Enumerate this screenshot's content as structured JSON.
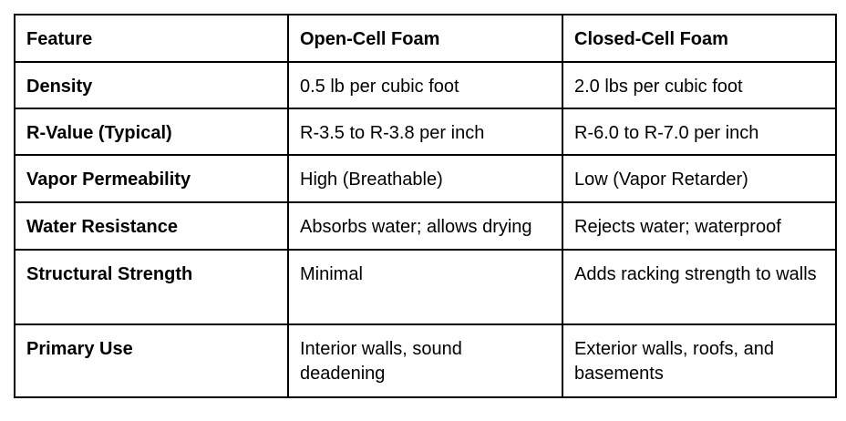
{
  "colors": {
    "background": "#ffffff",
    "border": "#000000",
    "text": "#000000"
  },
  "table": {
    "headers": {
      "feature": "Feature",
      "open": "Open-Cell Foam",
      "closed": "Closed-Cell Foam"
    },
    "rows": [
      {
        "feature": "Density",
        "open": "0.5 lb per cubic foot",
        "closed": "2.0 lbs per cubic foot"
      },
      {
        "feature": "R-Value (Typical)",
        "open": "R-3.5 to R-3.8 per inch",
        "closed": "R-6.0 to R-7.0 per inch"
      },
      {
        "feature": "Vapor Permeability",
        "open": "High (Breathable)",
        "closed": "Low (Vapor Retarder)"
      },
      {
        "feature": "Water Resistance",
        "open": "Absorbs water; allows drying",
        "closed": "Rejects water; waterproof"
      },
      {
        "feature": "Structural Strength",
        "open": "Minimal",
        "closed": "Adds racking strength to walls"
      },
      {
        "feature": "Primary Use",
        "open": "Interior walls, sound deadening",
        "closed": "Exterior walls, roofs, and basements"
      }
    ]
  }
}
